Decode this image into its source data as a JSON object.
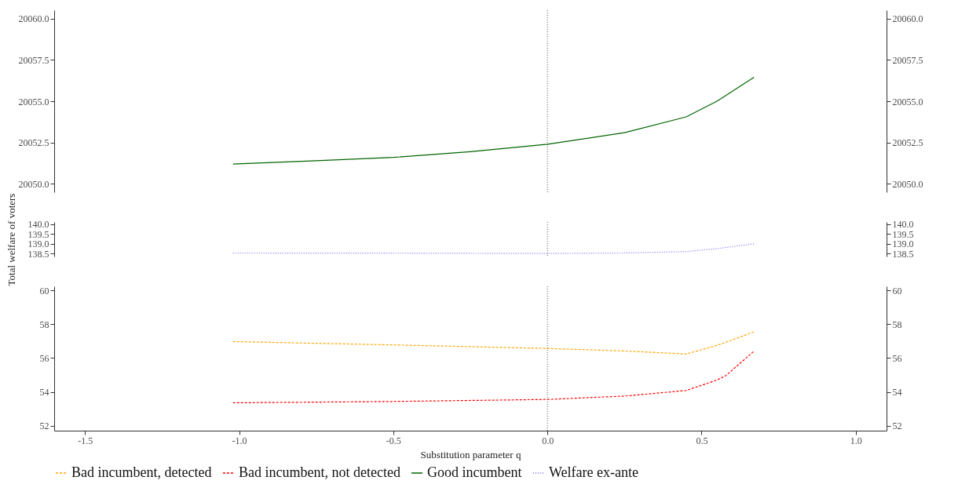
{
  "chart_data": [
    {
      "type": "line",
      "xlim": [
        -1.6,
        1.1
      ],
      "ylim": [
        20049.5,
        20060.5
      ],
      "yticks": [
        {
          "value": 20050,
          "label": "20050.0"
        },
        {
          "value": 20052.5,
          "label": "20052.5"
        },
        {
          "value": 20055,
          "label": "20055.0"
        },
        {
          "value": 20057.5,
          "label": "20057.5"
        },
        {
          "value": 20060,
          "label": "20060.0"
        }
      ],
      "y2lim": [
        20049.5,
        20060.5
      ],
      "y2ticks": [
        {
          "value": 20050,
          "label": "20050.0"
        },
        {
          "value": 20052.5,
          "label": "20052.5"
        },
        {
          "value": 20055,
          "label": "20055.0"
        },
        {
          "value": 20057.5,
          "label": "20057.5"
        },
        {
          "value": 20060,
          "label": "20060.0"
        }
      ],
      "tick_labels": "y",
      "ref_lines": [
        {
          "axis": "x",
          "value": 0,
          "color": "#555555",
          "line_style": "dotted"
        }
      ],
      "series": [
        {
          "name": "Good incumbent",
          "color": "#006400",
          "line_style": "solid",
          "x": [
            -1.02,
            -0.75,
            -0.5,
            -0.25,
            0,
            0.25,
            0.45,
            0.55,
            0.67
          ],
          "values": [
            20051.2,
            20051.4,
            20051.6,
            20051.95,
            20052.4,
            20053.1,
            20054.05,
            20055,
            20056.45
          ]
        }
      ]
    },
    {
      "type": "line",
      "xlim": [
        -1.6,
        1.1
      ],
      "ylim": [
        138.35,
        140.1
      ],
      "yticks": [
        {
          "value": 138.5,
          "label": "138.5"
        },
        {
          "value": 139,
          "label": "139.0"
        },
        {
          "value": 139.5,
          "label": "139.5"
        },
        {
          "value": 140,
          "label": "140.0"
        }
      ],
      "y2lim": [
        138.35,
        140.1
      ],
      "y2ticks": [
        {
          "value": 138.5,
          "label": "138.5"
        },
        {
          "value": 139,
          "label": "139.0"
        },
        {
          "value": 139.5,
          "label": "139.5"
        },
        {
          "value": 140,
          "label": "140.0"
        }
      ],
      "ylabel": "Total welfare of voters",
      "tick_labels": "y",
      "ref_lines": [
        {
          "axis": "x",
          "value": 0,
          "color": "#555555",
          "line_style": "dotted"
        }
      ],
      "series": [
        {
          "name": "Welfare ex-ante",
          "color": "#7b68ee",
          "line_style": "dotted",
          "x": [
            -1.02,
            -0.5,
            0,
            0.25,
            0.45,
            0.55,
            0.67
          ],
          "values": [
            138.53,
            138.52,
            138.5,
            138.53,
            138.6,
            138.75,
            139.0
          ]
        }
      ]
    },
    {
      "type": "line",
      "xlim": [
        -1.6,
        1.1
      ],
      "xticks": [
        {
          "value": -1.5,
          "label": "-1.5"
        },
        {
          "value": -1,
          "label": "-1.0"
        },
        {
          "value": -0.5,
          "label": "-0.5"
        },
        {
          "value": 0,
          "label": "0.0"
        },
        {
          "value": 0.5,
          "label": "0.5"
        },
        {
          "value": 1,
          "label": "1.0"
        }
      ],
      "ylim": [
        51.7,
        60.25
      ],
      "yticks": [
        52,
        54,
        56,
        58,
        60
      ],
      "y2lim": [
        51.7,
        60.25
      ],
      "y2ticks": [
        52,
        54,
        56,
        58,
        60
      ],
      "xlabel": "Substitution parameter q",
      "legend": "bottom",
      "ref_lines": [
        {
          "axis": "x",
          "value": 0,
          "color": "#555555",
          "line_style": "dotted"
        }
      ],
      "series": [
        {
          "name": "Bad incumbent, detected",
          "color": "#ffa500",
          "line_style": "dashed",
          "x": [
            -1.02,
            -0.5,
            0,
            0.25,
            0.45,
            0.55,
            0.67
          ],
          "values": [
            56.98,
            56.78,
            56.57,
            56.42,
            56.24,
            56.75,
            57.55
          ]
        },
        {
          "name": "Bad incumbent, not detected",
          "color": "#ff0000",
          "line_style": "dashed",
          "x": [
            -1.02,
            -0.5,
            0,
            0.25,
            0.45,
            0.55,
            0.58,
            0.67
          ],
          "values": [
            53.35,
            53.43,
            53.55,
            53.75,
            54.08,
            54.7,
            54.98,
            56.41
          ]
        }
      ]
    }
  ]
}
